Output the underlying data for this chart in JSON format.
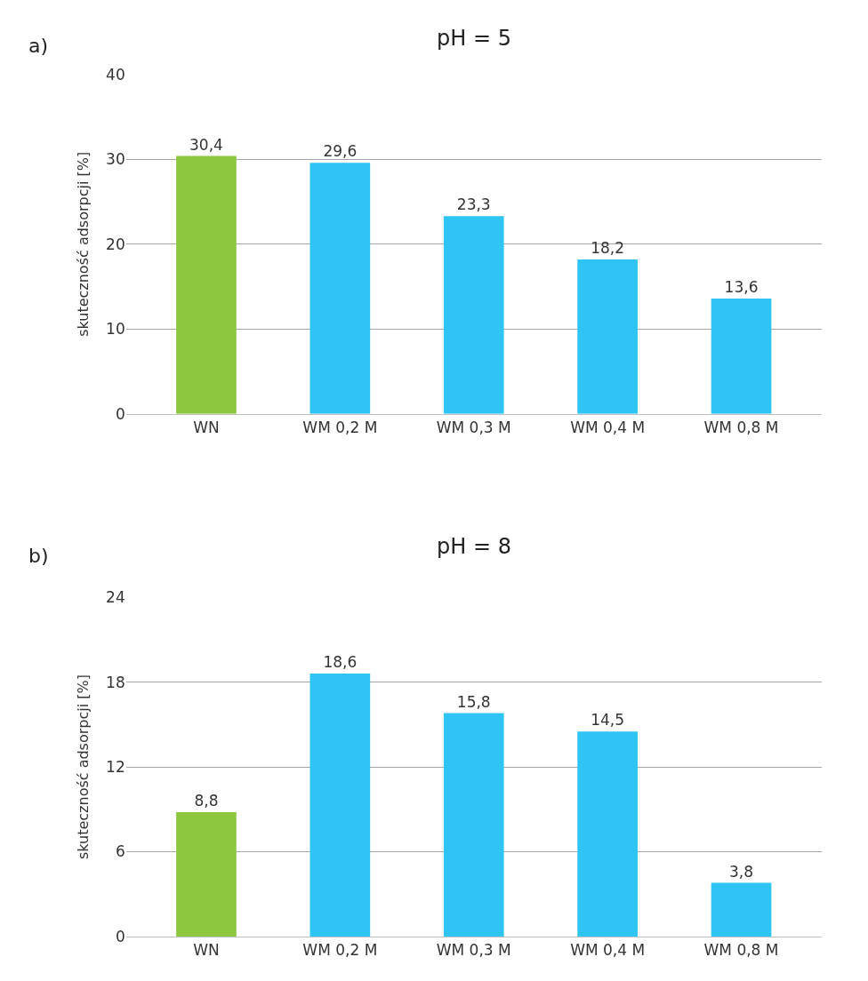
{
  "chart_data": [
    {
      "type": "bar",
      "title": "pH = 5",
      "ylabel": "skuteczność adsorpcji [%]",
      "annotations": [
        "a)"
      ],
      "categories": [
        "WN",
        "WM 0,2 M",
        "WM 0,3 M",
        "WM 0,4 M",
        "WM 0,8 M"
      ],
      "values": [
        30.4,
        29.6,
        23.3,
        18.2,
        13.6
      ],
      "colors": [
        "#8dc63f",
        "#2ec4f3",
        "#2ec4f3",
        "#2ec4f3",
        "#2ec4f3"
      ],
      "value_labels": [
        "30,4",
        "29,6",
        "23,3",
        "18,2",
        "13,6"
      ],
      "ylim": [
        0,
        40
      ],
      "yticks": [
        0,
        10,
        20,
        30,
        40
      ],
      "grid": "y"
    },
    {
      "type": "bar",
      "title": "pH = 8",
      "ylabel": "skuteczność adsorpcji [%]",
      "annotations": [
        "b)"
      ],
      "categories": [
        "WN",
        "WM 0,2 M",
        "WM 0,3 M",
        "WM 0,4 M",
        "WM 0,8 M"
      ],
      "values": [
        8.8,
        18.6,
        15.8,
        14.5,
        3.8
      ],
      "colors": [
        "#8dc63f",
        "#2ec4f3",
        "#2ec4f3",
        "#2ec4f3",
        "#2ec4f3"
      ],
      "value_labels": [
        "8,8",
        "18,6",
        "15,8",
        "14,5",
        "3,8"
      ],
      "ylim": [
        0,
        24
      ],
      "yticks": [
        0,
        6,
        12,
        18,
        24
      ],
      "grid": "y"
    }
  ]
}
